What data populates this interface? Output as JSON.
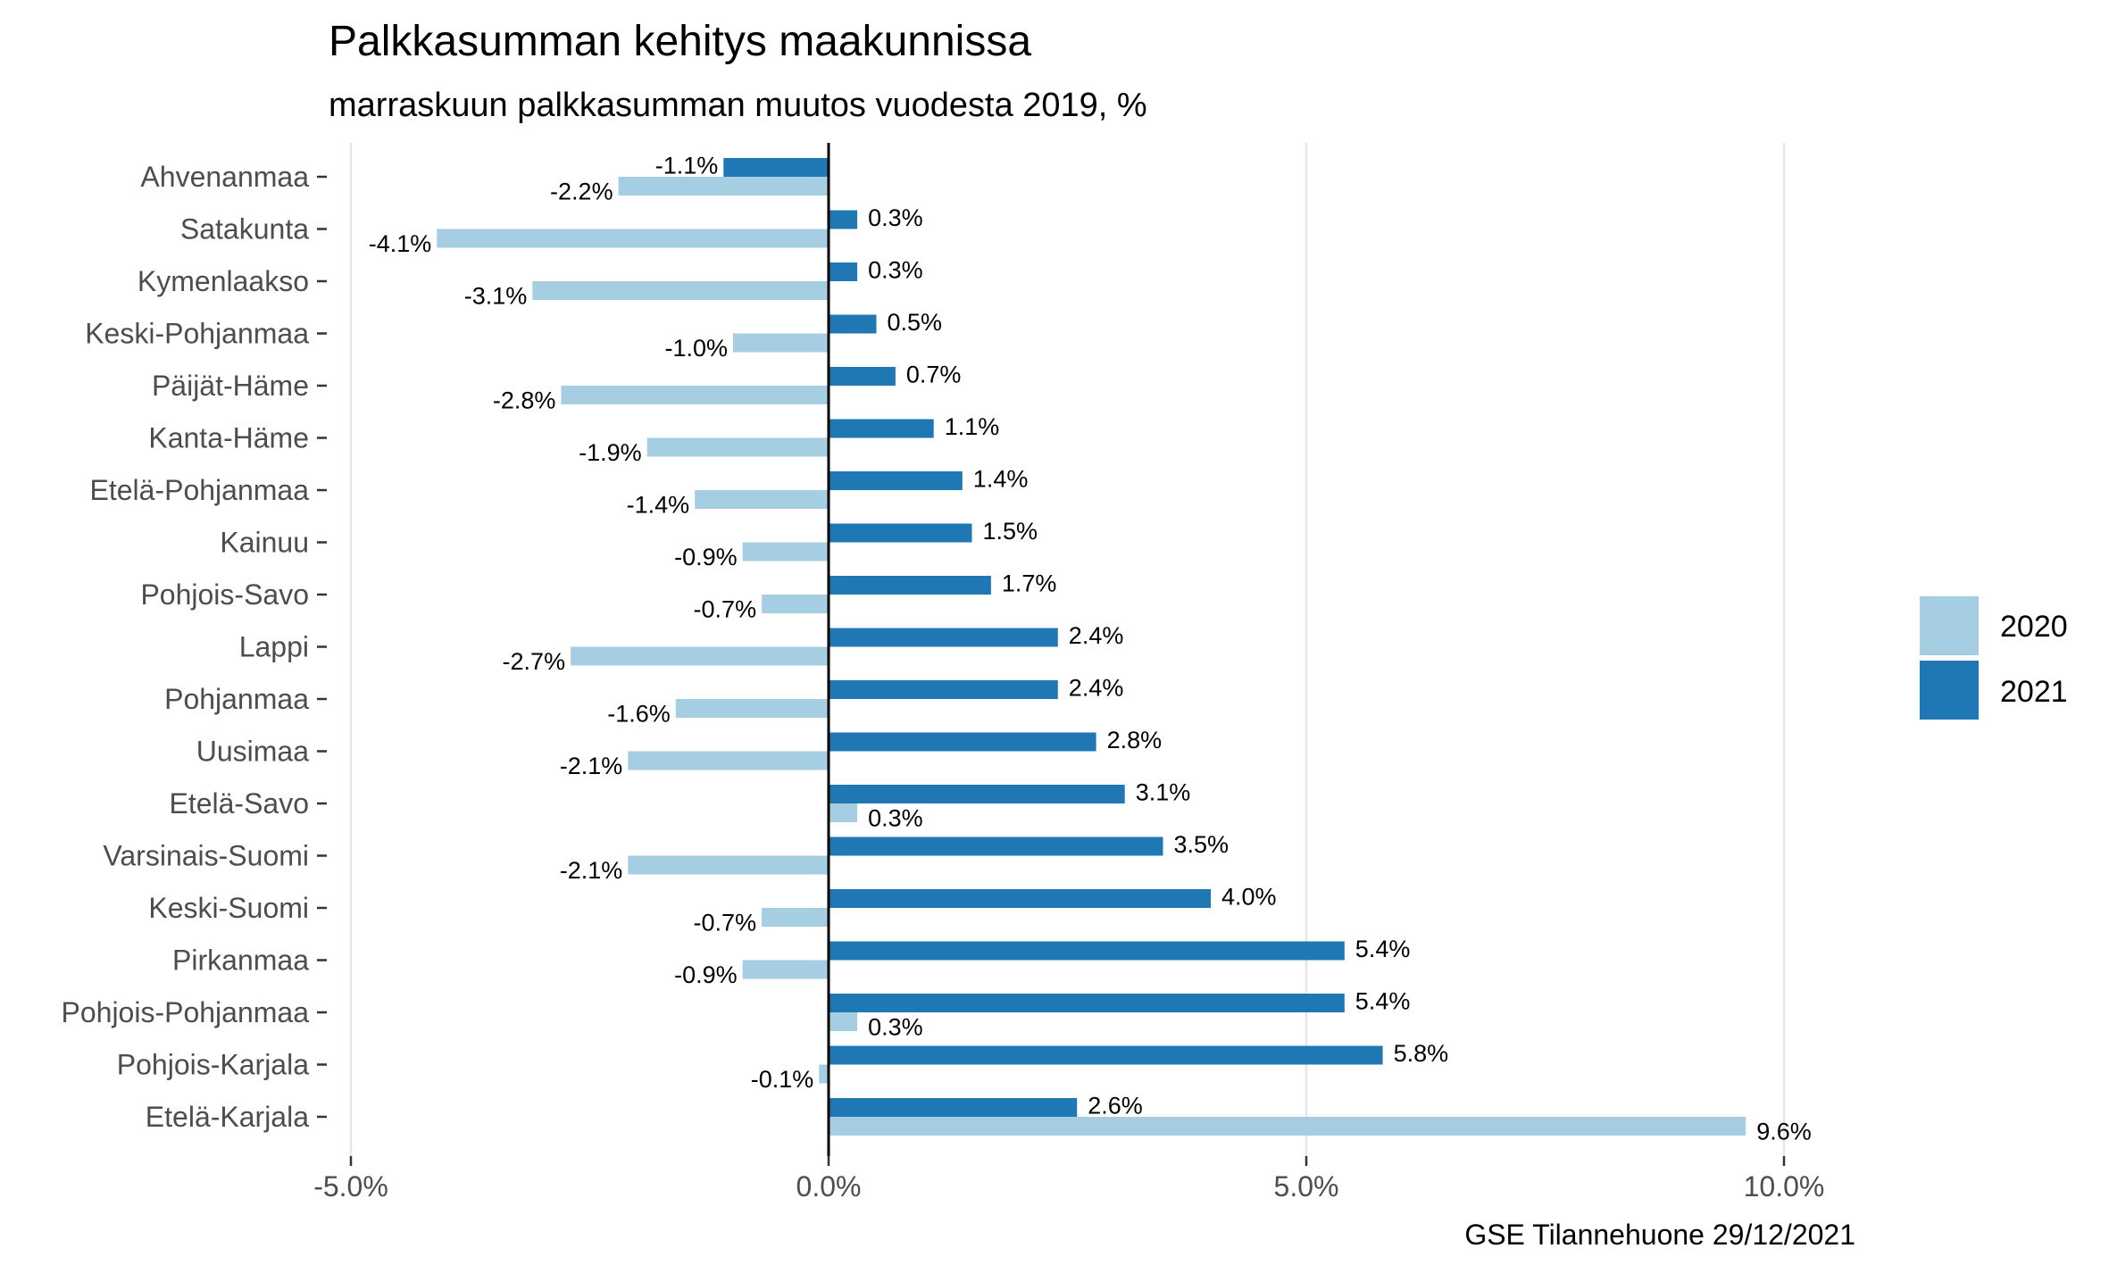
{
  "chart_data": {
    "type": "bar",
    "orientation": "horizontal",
    "title": "Palkkasumman kehitys maakunnissa",
    "subtitle": "marraskuun palkkasumman muutos vuodesta 2019, %",
    "caption": "GSE Tilannehuone 29/12/2021",
    "categories": [
      "Ahvenanmaa",
      "Satakunta",
      "Kymenlaakso",
      "Keski-Pohjanmaa",
      "Päijät-Häme",
      "Kanta-Häme",
      "Etelä-Pohjanmaa",
      "Kainuu",
      "Pohjois-Savo",
      "Lappi",
      "Pohjanmaa",
      "Uusimaa",
      "Etelä-Savo",
      "Varsinais-Suomi",
      "Keski-Suomi",
      "Pirkanmaa",
      "Pohjois-Pohjanmaa",
      "Pohjois-Karjala",
      "Etelä-Karjala"
    ],
    "series": [
      {
        "name": "2020",
        "color": "#a6cee3",
        "values": [
          -2.2,
          -4.1,
          -3.1,
          -1.0,
          -2.8,
          -1.9,
          -1.4,
          -0.9,
          -0.7,
          -2.7,
          -1.6,
          -2.1,
          0.3,
          -2.1,
          -0.7,
          -0.9,
          0.3,
          -0.1,
          9.6
        ],
        "labels": [
          "-2.2%",
          "-4.1%",
          "-3.1%",
          "-1.0%",
          "-2.8%",
          "-1.9%",
          "-1.4%",
          "-0.9%",
          "-0.7%",
          "-2.7%",
          "-1.6%",
          "-2.1%",
          "0.3%",
          "-2.1%",
          "-0.7%",
          "-0.9%",
          "0.3%",
          "-0.1%",
          "9.6%"
        ]
      },
      {
        "name": "2021",
        "color": "#1f78b4",
        "values": [
          -1.1,
          0.3,
          0.3,
          0.5,
          0.7,
          1.1,
          1.4,
          1.5,
          1.7,
          2.4,
          2.4,
          2.8,
          3.1,
          3.5,
          4.0,
          5.4,
          5.4,
          5.8,
          2.6
        ],
        "labels": [
          "-1.1%",
          "0.3%",
          "0.3%",
          "0.5%",
          "0.7%",
          "1.1%",
          "1.4%",
          "1.5%",
          "1.7%",
          "2.4%",
          "2.4%",
          "2.8%",
          "3.1%",
          "3.5%",
          "4.0%",
          "5.4%",
          "5.4%",
          "5.8%",
          "2.6%"
        ]
      }
    ],
    "xlim": [
      -5.4,
      10.2
    ],
    "xticks": [
      -5,
      0,
      5,
      10
    ],
    "xtick_labels": [
      "-5.0%",
      "0.0%",
      "5.0%",
      "10.0%"
    ],
    "xlabel": "",
    "ylabel": "",
    "legend": {
      "position": "right",
      "entries": [
        "2020",
        "2021"
      ]
    }
  }
}
